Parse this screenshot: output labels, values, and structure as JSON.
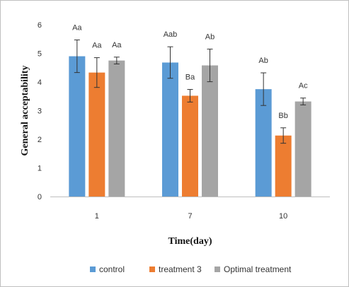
{
  "chart_data": {
    "type": "bar",
    "title": "",
    "xlabel": "Time(day)",
    "ylabel": "General acceptability",
    "ylim": [
      0,
      6
    ],
    "yticks": [
      0,
      1,
      2,
      3,
      4,
      5,
      6
    ],
    "categories": [
      "1",
      "7",
      "10"
    ],
    "grid": false,
    "legend_position": "bottom",
    "series": [
      {
        "name": "control",
        "color": "#5b9bd5",
        "values": [
          4.9,
          4.68,
          3.75
        ],
        "errors": [
          0.57,
          0.55,
          0.57
        ],
        "labels": [
          "Aa",
          "Aab",
          "Ab"
        ]
      },
      {
        "name": "treatment 3",
        "color": "#ed7d31",
        "values": [
          4.33,
          3.52,
          2.13
        ],
        "errors": [
          0.52,
          0.22,
          0.27
        ],
        "labels": [
          "Aa",
          "Ba",
          "Bb"
        ]
      },
      {
        "name": "Optimal treatment",
        "color": "#a5a5a5",
        "values": [
          4.75,
          4.58,
          3.32
        ],
        "errors": [
          0.12,
          0.57,
          0.12
        ],
        "labels": [
          "Aa",
          "Ab",
          "Ac"
        ]
      }
    ]
  }
}
